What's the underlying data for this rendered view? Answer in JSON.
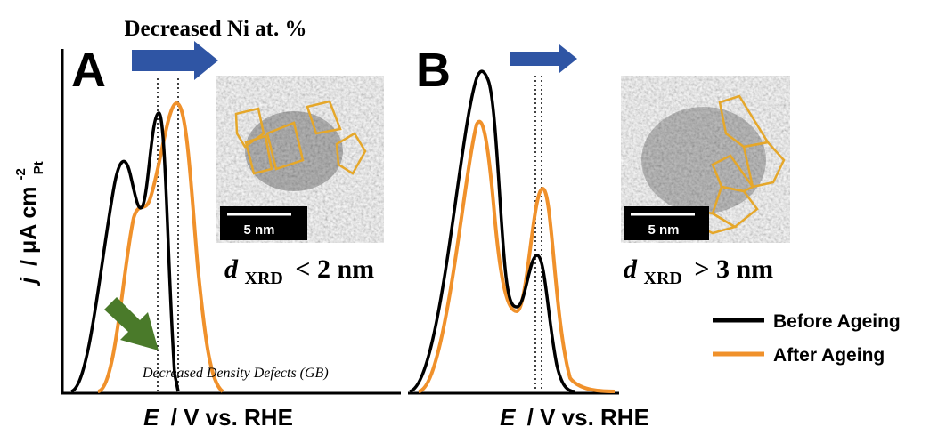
{
  "title": "Decreased Ni at. %",
  "y_label": {
    "symbol": "j",
    "text": "/ μA cm",
    "superscript": "-2",
    "subscript": "Pt"
  },
  "panels": [
    {
      "label": "A",
      "x_label": {
        "symbol": "E",
        "text": "/ V vs. RHE"
      },
      "scale_bar": "5 nm",
      "size": {
        "symbol": "d",
        "subscript": "XRD",
        "text": "< 2 nm"
      },
      "annotation": "Decreased Density Defects (GB)"
    },
    {
      "label": "B",
      "x_label": {
        "symbol": "E",
        "text": "/ V vs. RHE"
      },
      "scale_bar": "5 nm",
      "size": {
        "symbol": "d",
        "subscript": "XRD",
        "text": "> 3 nm"
      }
    }
  ],
  "legend": [
    {
      "name": "Before Ageing",
      "color": "#000000"
    },
    {
      "name": "After Ageing",
      "color": "#f0912b"
    }
  ]
}
